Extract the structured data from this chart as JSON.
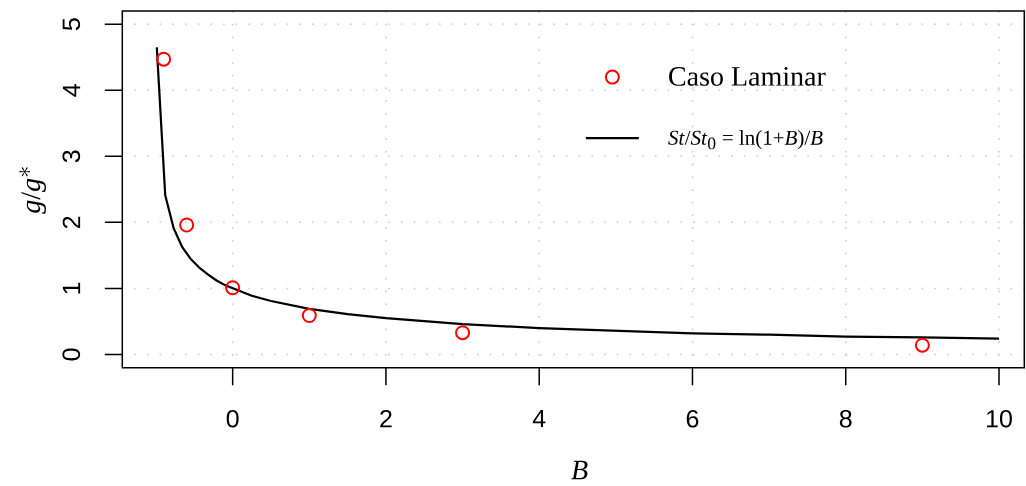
{
  "chart_data": {
    "type": "scatter",
    "xlabel": "B",
    "ylabel": "g/g^*",
    "xlim": [
      -1.44,
      10.33
    ],
    "ylim": [
      -0.2,
      5.2
    ],
    "xticks": [
      0,
      2,
      4,
      6,
      8,
      10
    ],
    "yticks": [
      0,
      1,
      2,
      3,
      4,
      5
    ],
    "grid": true,
    "legend": "top right",
    "marker": "circle",
    "series": [
      {
        "name": "Caso Laminar",
        "color": "#ff0000",
        "x": [
          -0.9,
          -0.6,
          0,
          1,
          3,
          9
        ],
        "values": [
          4.47,
          1.96,
          1.01,
          0.59,
          0.33,
          0.14
        ]
      },
      {
        "name": "*St*/*St*$_{0}$ = ln(1+*B*)/*B*",
        "type": "line",
        "color": "#000000",
        "marker": "none",
        "line_style": "solid",
        "x": [
          -0.99,
          -0.88,
          -0.77,
          -0.66,
          -0.55,
          -0.44,
          -0.32,
          -0.21,
          -0.1,
          0.01,
          0.25,
          0.5,
          1,
          1.5,
          2,
          3,
          4,
          5,
          6,
          7,
          8,
          9,
          10
        ],
        "values": [
          4.65,
          2.41,
          1.91,
          1.63,
          1.45,
          1.32,
          1.21,
          1.12,
          1.05,
          1.0,
          0.89,
          0.81,
          0.69,
          0.61,
          0.55,
          0.46,
          0.4,
          0.36,
          0.32,
          0.3,
          0.27,
          0.26,
          0.24
        ]
      }
    ]
  }
}
